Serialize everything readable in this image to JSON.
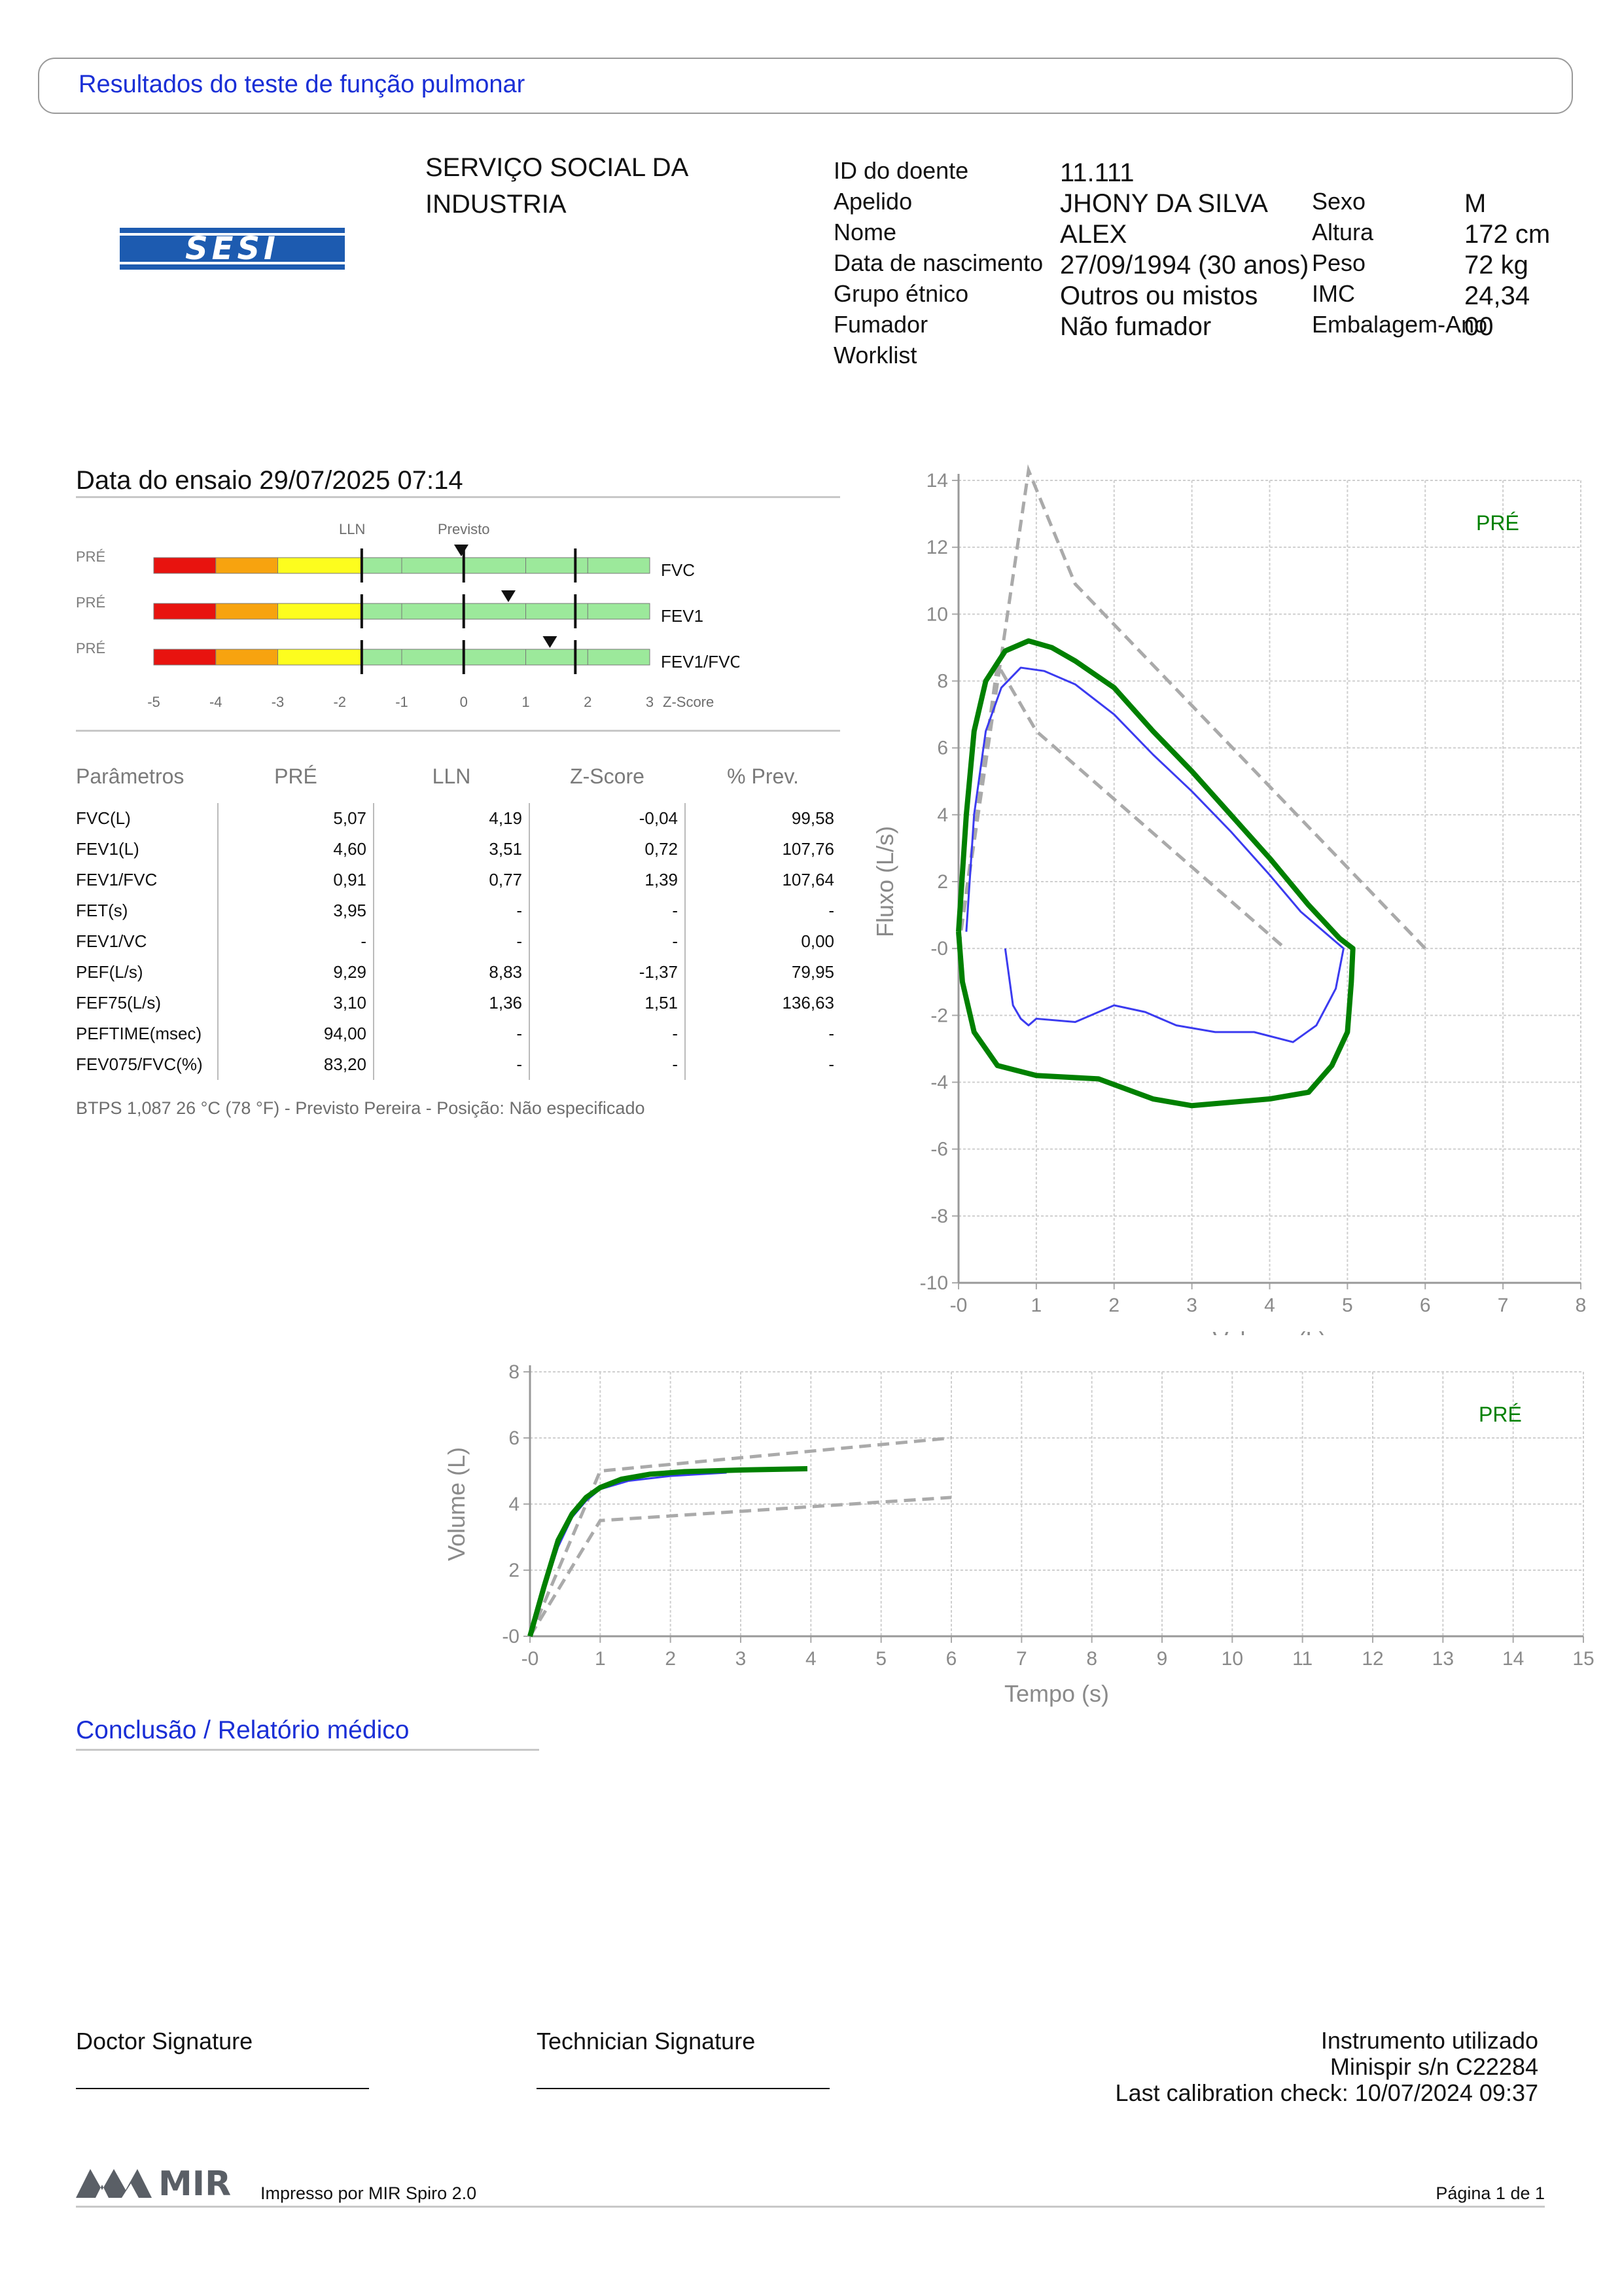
{
  "header": {
    "title": "Resultados do teste de função pulmonar"
  },
  "organization": {
    "line1": "SERVIÇO SOCIAL DA",
    "line2": "INDUSTRIA",
    "logo_text": "SESI"
  },
  "patient": {
    "labels": {
      "id": "ID do doente",
      "surname": "Apelido",
      "name": "Nome",
      "dob": "Data de nascimento",
      "ethnic": "Grupo étnico",
      "smoker": "Fumador",
      "worklist": "Worklist",
      "sex": "Sexo",
      "height": "Altura",
      "weight": "Peso",
      "bmi": "IMC",
      "pack": "Embalagem-Ano"
    },
    "values": {
      "id": "11.111",
      "surname": "JHONY DA SILVA",
      "name": "ALEX",
      "dob": "27/09/1994 (30 anos)",
      "ethnic": "Outros ou mistos",
      "smoker": "Não fumador",
      "sex": "M",
      "height": "172 cm",
      "weight": "72 kg",
      "bmi": "24,34",
      "pack": "00"
    }
  },
  "test": {
    "date_label": "Data do ensaio 29/07/2025 07:14"
  },
  "zscore_panel": {
    "lln_label": "LLN",
    "predicted_label": "Previsto",
    "axis_ticks": [
      "-5",
      "-4",
      "-3",
      "-2",
      "-1",
      "0",
      "1",
      "2",
      "3"
    ],
    "axis_title": "Z-Score",
    "bars": [
      {
        "phase": "PRÉ",
        "name": "FVC",
        "z": -0.04
      },
      {
        "phase": "PRÉ",
        "name": "FEV1",
        "z": 0.72
      },
      {
        "phase": "PRÉ",
        "name": "FEV1/FVC",
        "z": 1.39
      }
    ],
    "colors": {
      "red": "#e8130f",
      "orange": "#f7a30f",
      "yellow": "#fdfd1e",
      "green": "#9ce99b"
    }
  },
  "params_table": {
    "headers": [
      "Parâmetros",
      "PRÉ",
      "LLN",
      "Z-Score",
      "% Prev."
    ],
    "rows": [
      [
        "FVC(L)",
        "5,07",
        "4,19",
        "-0,04",
        "99,58"
      ],
      [
        "FEV1(L)",
        "4,60",
        "3,51",
        "0,72",
        "107,76"
      ],
      [
        "FEV1/FVC",
        "0,91",
        "0,77",
        "1,39",
        "107,64"
      ],
      [
        "FET(s)",
        "3,95",
        "-",
        "-",
        "-"
      ],
      [
        "FEV1/VC",
        "-",
        "-",
        "-",
        "0,00"
      ],
      [
        "PEF(L/s)",
        "9,29",
        "8,83",
        "-1,37",
        "79,95"
      ],
      [
        "FEF75(L/s)",
        "3,10",
        "1,36",
        "1,51",
        "136,63"
      ],
      [
        "PEFTIME(msec)",
        "94,00",
        "-",
        "-",
        "-"
      ],
      [
        "FEV075/FVC(%)",
        "83,20",
        "-",
        "-",
        "-"
      ]
    ],
    "note": "BTPS 1,087 26 °C (78 °F) - Previsto Pereira - Posição: Não especificado"
  },
  "chart_data": [
    {
      "type": "line",
      "title": "",
      "xlabel": "Volume (L)",
      "ylabel": "Fluxo (L/s)",
      "xlim": [
        0,
        8
      ],
      "ylim": [
        -10,
        14
      ],
      "xticks": [
        "-0",
        "1",
        "2",
        "3",
        "4",
        "5",
        "6",
        "7",
        "8"
      ],
      "yticks": [
        "14",
        "12",
        "10",
        "8",
        "6",
        "4",
        "2",
        "-0",
        "-2",
        "-4",
        "-6",
        "-8",
        "-10"
      ],
      "legend": "PRÉ",
      "colors": {
        "best": "#008000",
        "trial": "#3b3bf0",
        "predicted": "#aaaaaa"
      },
      "series": [
        {
          "name": "PRÉ",
          "style": "best",
          "points": [
            [
              0,
              0.5
            ],
            [
              0.1,
              4
            ],
            [
              0.2,
              6.5
            ],
            [
              0.35,
              8
            ],
            [
              0.6,
              8.9
            ],
            [
              0.9,
              9.2
            ],
            [
              1.2,
              9.0
            ],
            [
              1.5,
              8.6
            ],
            [
              2.0,
              7.8
            ],
            [
              2.5,
              6.5
            ],
            [
              3.0,
              5.3
            ],
            [
              3.5,
              4.0
            ],
            [
              4.0,
              2.7
            ],
            [
              4.5,
              1.3
            ],
            [
              4.9,
              0.3
            ],
            [
              5.07,
              0
            ],
            [
              5.05,
              -1
            ],
            [
              5.0,
              -2.5
            ],
            [
              4.8,
              -3.5
            ],
            [
              4.5,
              -4.3
            ],
            [
              4.0,
              -4.5
            ],
            [
              3.5,
              -4.6
            ],
            [
              3.0,
              -4.7
            ],
            [
              2.5,
              -4.5
            ],
            [
              1.8,
              -3.9
            ],
            [
              1.0,
              -3.8
            ],
            [
              0.5,
              -3.5
            ],
            [
              0.2,
              -2.5
            ],
            [
              0.05,
              -1
            ],
            [
              0,
              0.5
            ]
          ]
        },
        {
          "name": "",
          "style": "trial",
          "points": [
            [
              0.1,
              0.5
            ],
            [
              0.2,
              4
            ],
            [
              0.35,
              6.5
            ],
            [
              0.55,
              7.8
            ],
            [
              0.8,
              8.4
            ],
            [
              1.1,
              8.3
            ],
            [
              1.5,
              7.9
            ],
            [
              2.0,
              7.0
            ],
            [
              2.5,
              5.8
            ],
            [
              3.0,
              4.7
            ],
            [
              3.5,
              3.5
            ],
            [
              4.0,
              2.2
            ],
            [
              4.4,
              1.1
            ],
            [
              4.8,
              0.3
            ],
            [
              4.95,
              0
            ],
            [
              4.85,
              -1.2
            ],
            [
              4.6,
              -2.3
            ],
            [
              4.3,
              -2.8
            ],
            [
              3.8,
              -2.5
            ],
            [
              3.3,
              -2.5
            ],
            [
              2.8,
              -2.3
            ],
            [
              2.4,
              -1.9
            ],
            [
              2.0,
              -1.7
            ],
            [
              1.5,
              -2.2
            ],
            [
              1.0,
              -2.1
            ],
            [
              0.9,
              -2.3
            ],
            [
              0.8,
              -2.1
            ],
            [
              0.7,
              -1.7
            ],
            [
              0.6,
              0
            ]
          ]
        }
      ],
      "predicted_lines": [
        [
          [
            0,
            0
          ],
          [
            0.9,
            14.3
          ],
          [
            1.5,
            10.9
          ],
          [
            6.0,
            0
          ]
        ],
        [
          [
            0,
            0
          ],
          [
            0.5,
            8.5
          ],
          [
            1.0,
            6.5
          ],
          [
            4.2,
            0
          ]
        ]
      ]
    },
    {
      "type": "line",
      "title": "",
      "xlabel": "Tempo (s)",
      "ylabel": "Volume (L)",
      "xlim": [
        0,
        15
      ],
      "ylim": [
        0,
        8
      ],
      "xticks": [
        "-0",
        "1",
        "2",
        "3",
        "4",
        "5",
        "6",
        "7",
        "8",
        "9",
        "10",
        "11",
        "12",
        "13",
        "14",
        "15"
      ],
      "yticks": [
        "8",
        "6",
        "4",
        "2",
        "-0"
      ],
      "legend": "PRÉ",
      "colors": {
        "best": "#008000",
        "trial": "#3b3bf0",
        "predicted": "#aaaaaa"
      },
      "series": [
        {
          "name": "PRÉ",
          "style": "best",
          "points": [
            [
              0,
              0
            ],
            [
              0.2,
              1.5
            ],
            [
              0.4,
              2.9
            ],
            [
              0.6,
              3.7
            ],
            [
              0.8,
              4.2
            ],
            [
              1.0,
              4.5
            ],
            [
              1.3,
              4.75
            ],
            [
              1.7,
              4.9
            ],
            [
              2.2,
              4.98
            ],
            [
              3.0,
              5.03
            ],
            [
              3.95,
              5.07
            ]
          ]
        },
        {
          "name": "",
          "style": "trial",
          "points": [
            [
              0,
              0
            ],
            [
              0.2,
              1.4
            ],
            [
              0.4,
              2.7
            ],
            [
              0.6,
              3.6
            ],
            [
              0.8,
              4.1
            ],
            [
              1.0,
              4.45
            ],
            [
              1.4,
              4.7
            ],
            [
              2.0,
              4.85
            ],
            [
              2.8,
              4.95
            ]
          ]
        }
      ],
      "predicted_lines": [
        [
          [
            0,
            0
          ],
          [
            1,
            5.0
          ],
          [
            6,
            6.0
          ]
        ],
        [
          [
            0,
            0
          ],
          [
            1,
            3.5
          ],
          [
            6,
            4.2
          ]
        ]
      ]
    }
  ],
  "conclusion": {
    "title": "Conclusão / Relatório médico"
  },
  "signatures": {
    "doctor": "Doctor Signature",
    "technician": "Technician Signature"
  },
  "instrument": {
    "line1": "Instrumento utilizado",
    "line2": "Minispir s/n C22284",
    "line3": "Last calibration check: 10/07/2024 09:37"
  },
  "footer": {
    "brand": "MIR",
    "printed_by": "Impresso por MIR Spiro 2.0",
    "page": "Página 1 de 1"
  }
}
